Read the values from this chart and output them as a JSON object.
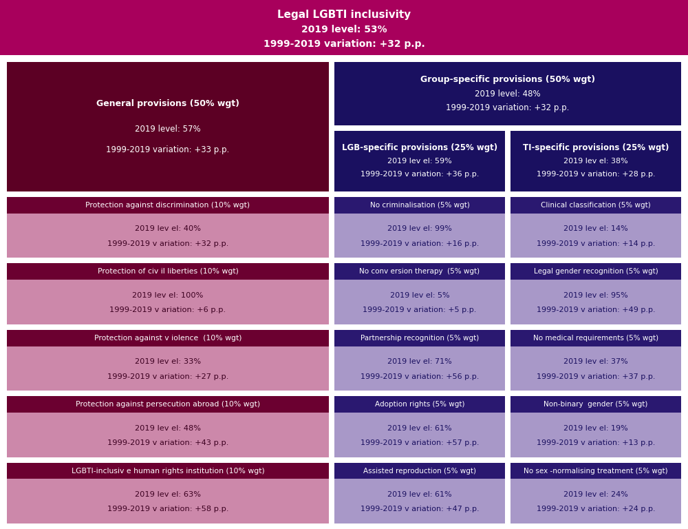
{
  "title_bg": "#A8005C",
  "title_line1": "Legal LGBTI inclusivity",
  "title_line2": "2019 level: 53%",
  "title_line3": "1999-2019 variation: +32 p.p.",
  "bg_color": "#FFFFFF",
  "left_large_color": "#5C0024",
  "left_sub_header_color": "#6B0030",
  "left_sub_body_color": "#CC88AA",
  "right_top_color": "#1A1060",
  "right_sub_header_color": "#2A1870",
  "right_sub_body_color": "#A898C8",
  "white": "#FFFFFF",
  "dark_maroon": "#3C0020",
  "dark_navy": "#1A1060",
  "left_large": {
    "line1": "General provisions (50% wgt)",
    "line2": "2019 level: 57%",
    "line3": "1999-2019 variation: +33 p.p."
  },
  "group_specific": {
    "line1": "Group-specific provisions (50% wgt)",
    "line2": "2019 level: 48%",
    "line3": "1999-2019 variation: +32 p.p."
  },
  "lgb_specific": {
    "line1": "LGB-specific provisions (25% wgt)",
    "line2": "2019 lev el: 59%",
    "line3": "1999-2019 v ariation: +36 p.p."
  },
  "ti_specific": {
    "line1": "TI-specific provisions (25% wgt)",
    "line2": "2019 lev el: 38%",
    "line3": "1999-2019 v ariation: +28 p.p."
  },
  "left_sub": [
    [
      "Protection against discrimination (10% wgt)",
      "2019 lev el: 40%",
      "1999-2019 v ariation: +32 p.p."
    ],
    [
      "Protection of civ il liberties (10% wgt)",
      "2019 lev el: 100%",
      "1999-2019 v ariation: +6 p.p."
    ],
    [
      "Protection against v iolence  (10% wgt)",
      "2019 lev el: 33%",
      "1999-2019 v ariation: +27 p.p."
    ],
    [
      "Protection against persecution abroad (10% wgt)",
      "2019 lev el: 48%",
      "1999-2019 v ariation: +43 p.p."
    ],
    [
      "LGBTI-inclusiv e human rights institution (10% wgt)",
      "2019 lev el: 63%",
      "1999-2019 v ariation: +58 p.p."
    ]
  ],
  "lgb_sub": [
    [
      "No criminalisation (5% wgt)",
      "2019 lev el: 99%",
      "1999-2019 v ariation: +16 p.p."
    ],
    [
      "No conv ersion therapy  (5% wgt)",
      "2019 lev el: 5%",
      "1999-2019 v ariation: +5 p.p."
    ],
    [
      "Partnership recognition (5% wgt)",
      "2019 lev el: 71%",
      "1999-2019 v ariation: +56 p.p."
    ],
    [
      "Adoption rights (5% wgt)",
      "2019 lev el: 61%",
      "1999-2019 v ariation: +57 p.p."
    ],
    [
      "Assisted reproduction (5% wgt)",
      "2019 lev el: 61%",
      "1999-2019 v ariation: +47 p.p."
    ]
  ],
  "ti_sub": [
    [
      "Clinical classification (5% wgt)",
      "2019 lev el: 14%",
      "1999-2019 v ariation: +14 p.p."
    ],
    [
      "Legal gender recognition (5% wgt)",
      "2019 lev el: 95%",
      "1999-2019 v ariation: +49 p.p."
    ],
    [
      "No medical requirements (5% wgt)",
      "2019 lev el: 37%",
      "1999-2019 v ariation: +37 p.p."
    ],
    [
      "Non-binary  gender (5% wgt)",
      "2019 lev el: 19%",
      "1999-2019 v ariation: +13 p.p."
    ],
    [
      "No sex -normalising treatment (5% wgt)",
      "2019 lev el: 24%",
      "1999-2019 v ariation: +24 p.p."
    ]
  ]
}
